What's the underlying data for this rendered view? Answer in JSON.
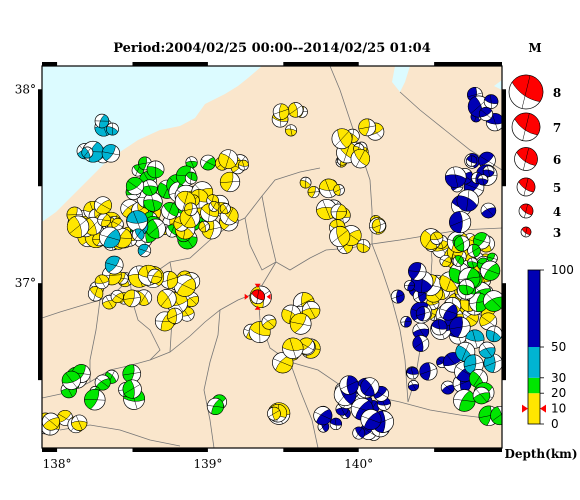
{
  "title": "Period:2004/02/25 00:00--2014/02/25 01:04",
  "map": {
    "lon_range": [
      137.9,
      140.95
    ],
    "lat_range": [
      36.15,
      38.12
    ],
    "lon_ticks": [
      {
        "value": 138,
        "label": "138°"
      },
      {
        "value": 139,
        "label": "139°"
      },
      {
        "value": 140,
        "label": "140°"
      }
    ],
    "lat_ticks": [
      {
        "value": 38,
        "label": "38°"
      },
      {
        "value": 37,
        "label": "37°"
      }
    ],
    "colors": {
      "sea": "#dcfbff",
      "land": "#fae6cc",
      "border": "#777777"
    }
  },
  "magnitude_legend": {
    "title": "M",
    "items": [
      {
        "label": "8"
      },
      {
        "label": "7"
      },
      {
        "label": "6"
      },
      {
        "label": "5"
      },
      {
        "label": "4"
      },
      {
        "label": "3"
      }
    ],
    "color": "#ff0000"
  },
  "depth_scale": {
    "title": "Depth(km)",
    "ticks": [
      {
        "value": 0,
        "label": "0"
      },
      {
        "value": 10,
        "label": "10"
      },
      {
        "value": 20,
        "label": "20"
      },
      {
        "value": 30,
        "label": "30"
      },
      {
        "value": 50,
        "label": "50"
      },
      {
        "value": 100,
        "label": "100"
      }
    ],
    "colors": {
      "shallow": "#ffe600",
      "mid": "#00e600",
      "deep": "#00b4d2",
      "deepest": "#0000b4"
    },
    "marker_depth": 10
  },
  "target_event": {
    "lon": 139.33,
    "lat": 36.93,
    "color": "#ff0000"
  },
  "events_color_key": [
    "yellow: 0-20 km",
    "green: 20-30 km",
    "cyan: 30-50 km",
    "blue: 50-100 km"
  ]
}
